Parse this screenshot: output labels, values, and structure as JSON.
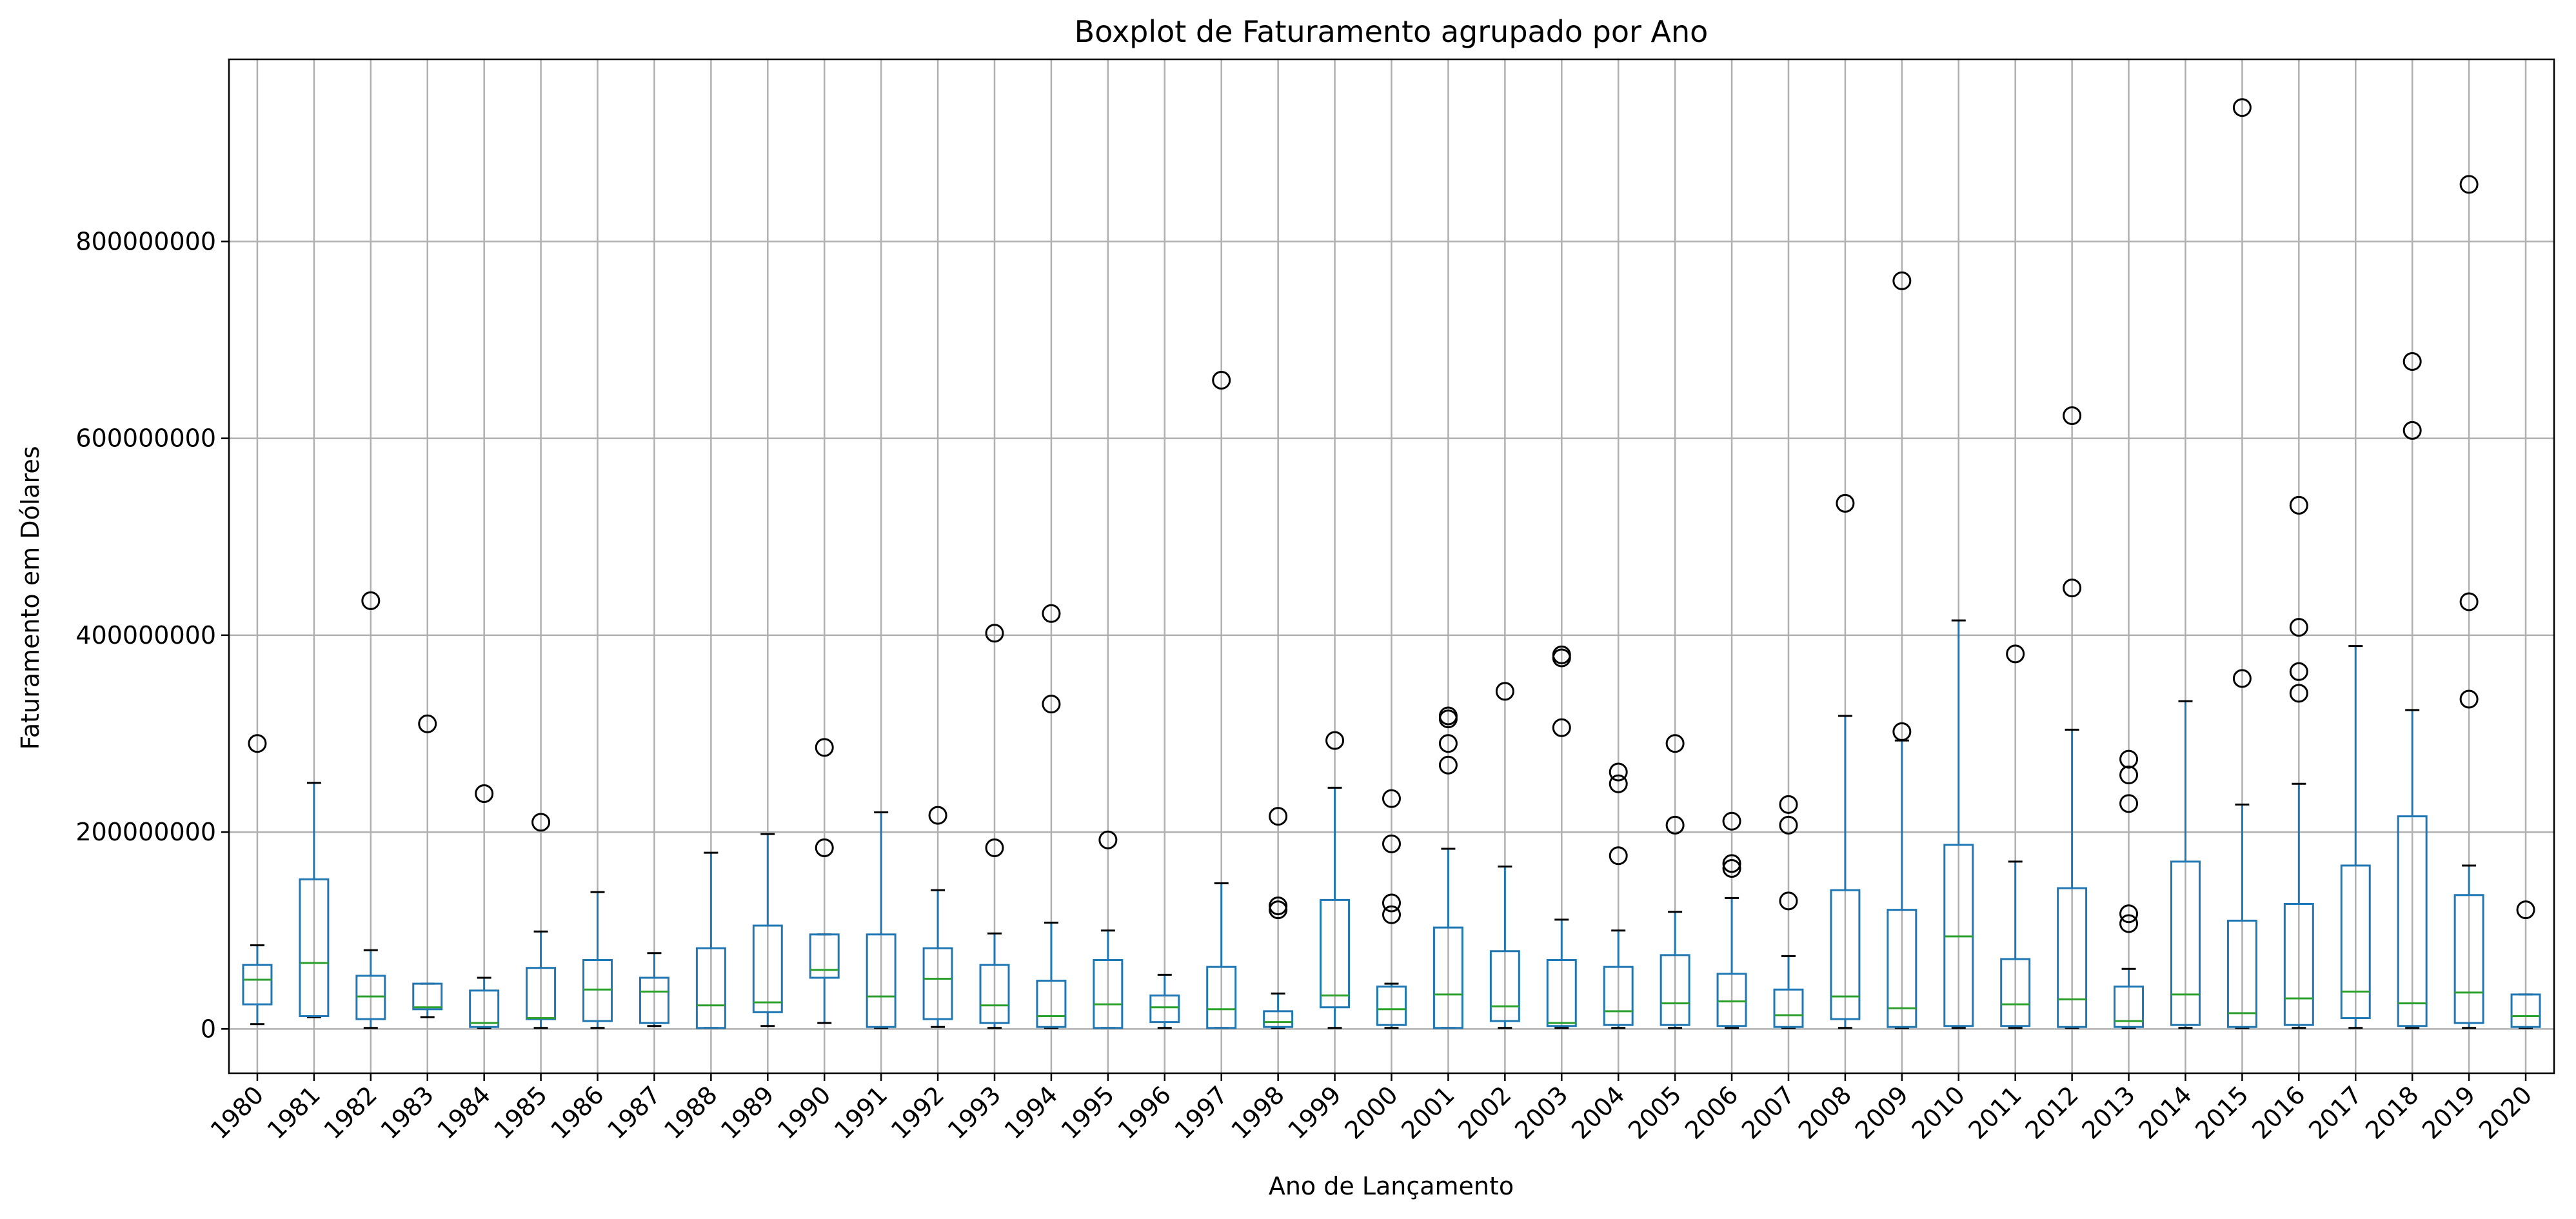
{
  "chart_data": {
    "type": "boxplot",
    "title": "Boxplot de Faturamento agrupado por Ano",
    "xlabel": "Ano de Lançamento",
    "ylabel": "Faturamento em Dólares",
    "ylim": [
      -45000000,
      985000000
    ],
    "yticks": [
      0,
      200000000,
      400000000,
      600000000,
      800000000
    ],
    "grid": true,
    "colors": {
      "box": "#1f77b4",
      "median": "#2ca02c",
      "grid": "#b0b0b0",
      "frame": "#000000"
    },
    "categories": [
      "1980",
      "1981",
      "1982",
      "1983",
      "1984",
      "1985",
      "1986",
      "1987",
      "1988",
      "1989",
      "1990",
      "1991",
      "1992",
      "1993",
      "1994",
      "1995",
      "1996",
      "1997",
      "1998",
      "1999",
      "2000",
      "2001",
      "2002",
      "2003",
      "2004",
      "2005",
      "2006",
      "2007",
      "2008",
      "2009",
      "2010",
      "2011",
      "2012",
      "2013",
      "2014",
      "2015",
      "2016",
      "2017",
      "2018",
      "2019",
      "2020"
    ],
    "boxes": [
      {
        "min": 5000000,
        "q1": 25000000,
        "median": 50000000,
        "q3": 65000000,
        "max": 85000000,
        "outliers": [
          290000000
        ]
      },
      {
        "min": 12000000,
        "q1": 13000000,
        "median": 67000000,
        "q3": 152000000,
        "max": 250000000,
        "outliers": []
      },
      {
        "min": 1000000,
        "q1": 10000000,
        "median": 33000000,
        "q3": 54000000,
        "max": 80000000,
        "outliers": [
          435000000
        ]
      },
      {
        "min": 12000000,
        "q1": 20000000,
        "median": 22000000,
        "q3": 46000000,
        "max": 46000000,
        "outliers": [
          310000000
        ]
      },
      {
        "min": 1000000,
        "q1": 2000000,
        "median": 6000000,
        "q3": 39000000,
        "max": 52000000,
        "outliers": [
          239000000
        ]
      },
      {
        "min": 1000000,
        "q1": 10000000,
        "median": 11000000,
        "q3": 62000000,
        "max": 99000000,
        "outliers": [
          210000000
        ]
      },
      {
        "min": 1000000,
        "q1": 8000000,
        "median": 40000000,
        "q3": 70000000,
        "max": 139000000,
        "outliers": []
      },
      {
        "min": 3000000,
        "q1": 6000000,
        "median": 38000000,
        "q3": 52000000,
        "max": 77000000,
        "outliers": []
      },
      {
        "min": 1000000,
        "q1": 1000000,
        "median": 24000000,
        "q3": 82000000,
        "max": 179000000,
        "outliers": []
      },
      {
        "min": 3000000,
        "q1": 17000000,
        "median": 27000000,
        "q3": 105000000,
        "max": 198000000,
        "outliers": []
      },
      {
        "min": 6000000,
        "q1": 52000000,
        "median": 60000000,
        "q3": 96000000,
        "max": 96000000,
        "outliers": [
          184000000,
          286000000
        ]
      },
      {
        "min": 1000000,
        "q1": 2000000,
        "median": 33000000,
        "q3": 96000000,
        "max": 220000000,
        "outliers": []
      },
      {
        "min": 2000000,
        "q1": 10000000,
        "median": 51000000,
        "q3": 82000000,
        "max": 141000000,
        "outliers": [
          217000000
        ]
      },
      {
        "min": 1000000,
        "q1": 6000000,
        "median": 24000000,
        "q3": 65000000,
        "max": 97000000,
        "outliers": [
          184000000,
          402000000
        ]
      },
      {
        "min": 1000000,
        "q1": 2000000,
        "median": 13000000,
        "q3": 49000000,
        "max": 108000000,
        "outliers": [
          330000000,
          422000000
        ]
      },
      {
        "min": 1000000,
        "q1": 1000000,
        "median": 25000000,
        "q3": 70000000,
        "max": 100000000,
        "outliers": [
          192000000
        ]
      },
      {
        "min": 1000000,
        "q1": 7000000,
        "median": 22000000,
        "q3": 34000000,
        "max": 55000000,
        "outliers": []
      },
      {
        "min": 1000000,
        "q1": 1000000,
        "median": 20000000,
        "q3": 63000000,
        "max": 148000000,
        "outliers": [
          659000000
        ]
      },
      {
        "min": 1000000,
        "q1": 2000000,
        "median": 7000000,
        "q3": 18000000,
        "max": 36000000,
        "outliers": [
          121000000,
          125000000,
          216000000
        ]
      },
      {
        "min": 1000000,
        "q1": 22000000,
        "median": 34000000,
        "q3": 131000000,
        "max": 245000000,
        "outliers": [
          293000000
        ]
      },
      {
        "min": 1000000,
        "q1": 4000000,
        "median": 20000000,
        "q3": 43000000,
        "max": 46000000,
        "outliers": [
          116000000,
          128000000,
          188000000,
          234000000
        ]
      },
      {
        "min": 1000000,
        "q1": 1000000,
        "median": 35000000,
        "q3": 103000000,
        "max": 183000000,
        "outliers": [
          268000000,
          290000000,
          315000000,
          318000000
        ]
      },
      {
        "min": 1000000,
        "q1": 8000000,
        "median": 23000000,
        "q3": 79000000,
        "max": 165000000,
        "outliers": [
          343000000
        ]
      },
      {
        "min": 1000000,
        "q1": 3000000,
        "median": 6000000,
        "q3": 70000000,
        "max": 111000000,
        "outliers": [
          306000000,
          377000000,
          380000000
        ]
      },
      {
        "min": 1000000,
        "q1": 4000000,
        "median": 18000000,
        "q3": 63000000,
        "max": 100000000,
        "outliers": [
          176000000,
          249000000,
          261000000
        ]
      },
      {
        "min": 1000000,
        "q1": 4000000,
        "median": 26000000,
        "q3": 75000000,
        "max": 119000000,
        "outliers": [
          207000000,
          290000000
        ]
      },
      {
        "min": 1000000,
        "q1": 3000000,
        "median": 28000000,
        "q3": 56000000,
        "max": 133000000,
        "outliers": [
          163000000,
          168000000,
          211000000
        ]
      },
      {
        "min": 1000000,
        "q1": 2000000,
        "median": 14000000,
        "q3": 40000000,
        "max": 74000000,
        "outliers": [
          130000000,
          207000000,
          228000000
        ]
      },
      {
        "min": 1000000,
        "q1": 10000000,
        "median": 33000000,
        "q3": 141000000,
        "max": 318000000,
        "outliers": [
          534000000
        ]
      },
      {
        "min": 1000000,
        "q1": 2000000,
        "median": 21000000,
        "q3": 121000000,
        "max": 293000000,
        "outliers": [
          302000000,
          760000000
        ]
      },
      {
        "min": 1000000,
        "q1": 3000000,
        "median": 94000000,
        "q3": 187000000,
        "max": 415000000,
        "outliers": []
      },
      {
        "min": 1000000,
        "q1": 3000000,
        "median": 25000000,
        "q3": 71000000,
        "max": 170000000,
        "outliers": [
          381000000
        ]
      },
      {
        "min": 1000000,
        "q1": 2000000,
        "median": 30000000,
        "q3": 143000000,
        "max": 304000000,
        "outliers": [
          448000000,
          623000000
        ]
      },
      {
        "min": 1000000,
        "q1": 2000000,
        "median": 8000000,
        "q3": 43000000,
        "max": 61000000,
        "outliers": [
          107000000,
          117000000,
          229000000,
          258000000,
          274000000
        ]
      },
      {
        "min": 1000000,
        "q1": 4000000,
        "median": 35000000,
        "q3": 170000000,
        "max": 333000000,
        "outliers": []
      },
      {
        "min": 1000000,
        "q1": 2000000,
        "median": 16000000,
        "q3": 110000000,
        "max": 228000000,
        "outliers": [
          356000000,
          936000000
        ]
      },
      {
        "min": 1000000,
        "q1": 4000000,
        "median": 31000000,
        "q3": 127000000,
        "max": 249000000,
        "outliers": [
          341000000,
          363000000,
          408000000,
          532000000
        ]
      },
      {
        "min": 1000000,
        "q1": 11000000,
        "median": 38000000,
        "q3": 166000000,
        "max": 389000000,
        "outliers": []
      },
      {
        "min": 1000000,
        "q1": 3000000,
        "median": 26000000,
        "q3": 216000000,
        "max": 324000000,
        "outliers": [
          608000000,
          678000000
        ]
      },
      {
        "min": 1000000,
        "q1": 6000000,
        "median": 37000000,
        "q3": 136000000,
        "max": 166000000,
        "outliers": [
          335000000,
          434000000,
          858000000
        ]
      },
      {
        "min": 1000000,
        "q1": 2000000,
        "median": 13000000,
        "q3": 35000000,
        "max": 35000000,
        "outliers": [
          121000000
        ]
      }
    ]
  }
}
